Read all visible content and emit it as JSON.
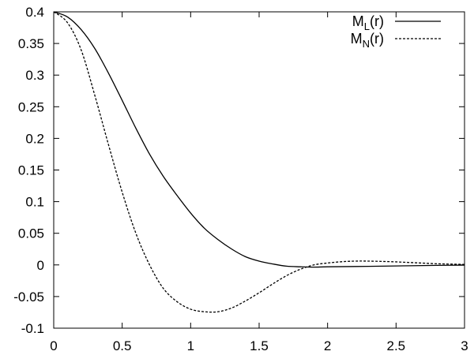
{
  "chart_data": {
    "type": "line",
    "title": "",
    "xlabel": "",
    "ylabel": "",
    "xlim": [
      0,
      3
    ],
    "ylim": [
      -0.1,
      0.4
    ],
    "x_ticks": [
      "0",
      "0.5",
      "1",
      "1.5",
      "2",
      "2.5",
      "3"
    ],
    "y_ticks": [
      "-0.1",
      "-0.05",
      "0",
      "0.05",
      "0.1",
      "0.15",
      "0.2",
      "0.25",
      "0.3",
      "0.35",
      "0.4"
    ],
    "x_tick_values": [
      0,
      0.5,
      1,
      1.5,
      2,
      2.5,
      3
    ],
    "y_tick_values": [
      -0.1,
      -0.05,
      0,
      0.05,
      0.1,
      0.15,
      0.2,
      0.25,
      0.3,
      0.35,
      0.4
    ],
    "grid": false,
    "legend_position": "top-right",
    "series": [
      {
        "name_main": "M",
        "name_sub": "L",
        "name_tail": "(r)",
        "style": "solid",
        "color": "#000000",
        "x": [
          0,
          0.1,
          0.2,
          0.3,
          0.4,
          0.5,
          0.6,
          0.7,
          0.8,
          0.9,
          1.0,
          1.1,
          1.2,
          1.3,
          1.4,
          1.5,
          1.6,
          1.7,
          1.8,
          1.9,
          2.0,
          2.2,
          2.4,
          2.6,
          2.8,
          3.0
        ],
        "y": [
          0.4,
          0.392,
          0.372,
          0.342,
          0.303,
          0.26,
          0.216,
          0.175,
          0.14,
          0.11,
          0.082,
          0.058,
          0.04,
          0.025,
          0.013,
          0.006,
          0.0015,
          -0.002,
          -0.003,
          -0.0035,
          -0.003,
          -0.0025,
          -0.002,
          -0.0013,
          -0.0007,
          -0.0003
        ]
      },
      {
        "name_main": "M",
        "name_sub": "N",
        "name_tail": "(r)",
        "style": "dashed",
        "color": "#000000",
        "x": [
          0,
          0.1,
          0.2,
          0.3,
          0.4,
          0.5,
          0.6,
          0.7,
          0.8,
          0.9,
          1.0,
          1.1,
          1.2,
          1.3,
          1.4,
          1.5,
          1.6,
          1.7,
          1.8,
          1.9,
          2.0,
          2.1,
          2.2,
          2.3,
          2.4,
          2.5,
          2.6,
          2.7,
          2.8,
          3.0
        ],
        "y": [
          0.4,
          0.383,
          0.34,
          0.268,
          0.19,
          0.115,
          0.05,
          0.0,
          -0.037,
          -0.058,
          -0.07,
          -0.074,
          -0.074,
          -0.068,
          -0.057,
          -0.044,
          -0.03,
          -0.017,
          -0.007,
          0.0,
          0.003,
          0.005,
          0.006,
          0.006,
          0.0055,
          0.0048,
          0.0038,
          0.0028,
          0.0018,
          0.0008
        ]
      }
    ]
  }
}
